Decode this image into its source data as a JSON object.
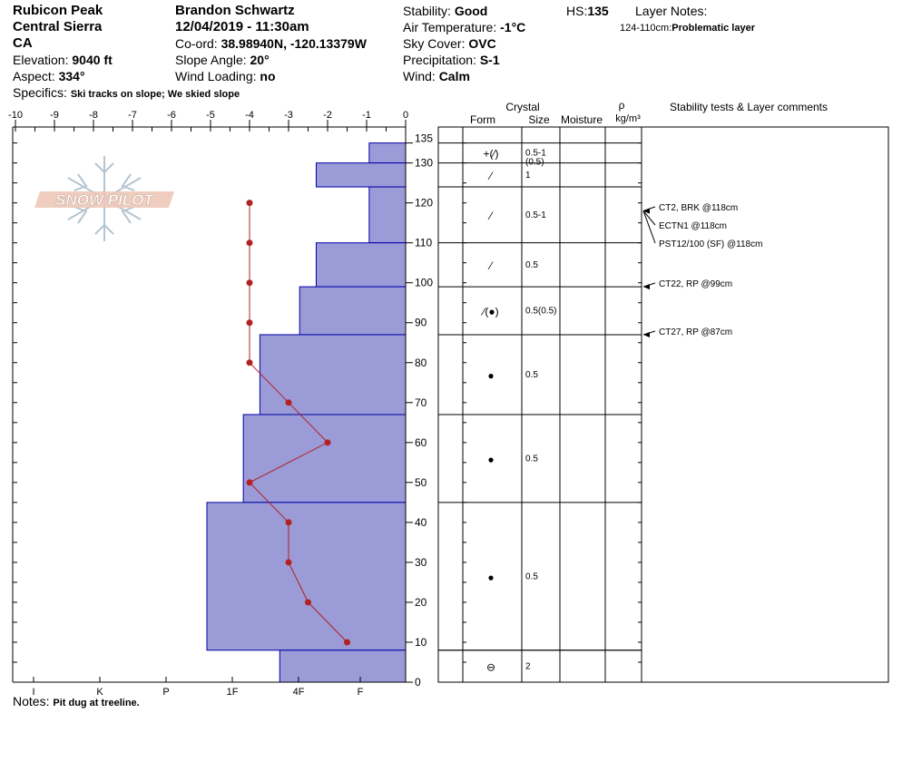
{
  "header": {
    "site": "Rubicon Peak",
    "range": "Central Sierra",
    "state": "CA",
    "elevation_label": "Elevation:",
    "elevation_value": "9040 ft",
    "aspect_label": "Aspect:",
    "aspect_value": "334°",
    "specifics_label": "Specifics:",
    "specifics_value": "Ski tracks on slope; We skied slope",
    "observer": "Brandon Schwartz",
    "datetime": "12/04/2019 - 11:30am",
    "coord_label": "Co-ord:",
    "coord_value": "38.98940N, -120.13379W",
    "slope_label": "Slope Angle:",
    "slope_value": "20°",
    "wind_loading_label": "Wind Loading:",
    "wind_loading_value": "no",
    "stability_label": "Stability:",
    "stability_value": "Good",
    "air_temp_label": "Air Temperature:",
    "air_temp_value": "-1°C",
    "sky_label": "Sky Cover:",
    "sky_value": "OVC",
    "precip_label": "Precipitation:",
    "precip_value": "S-1",
    "wind_label": "Wind:",
    "wind_value": "Calm",
    "hs_label": "HS:",
    "hs_value": "135",
    "layer_notes_label": "Layer Notes:",
    "layer_note_range": "124-110cm:",
    "layer_note_text": "Problematic layer",
    "notes_label": "Notes:",
    "notes_value": "Pit dug at treeline."
  },
  "logo": {
    "text": "SNOW PILOT"
  },
  "chart_data": {
    "type": "snow_profile",
    "temperature_axis": {
      "ticks": [
        -10,
        -9,
        -8,
        -7,
        -6,
        -5,
        -4,
        -3,
        -2,
        -1,
        0
      ],
      "range": [
        -10,
        0
      ]
    },
    "depth_axis": {
      "ticks": [
        0,
        10,
        20,
        30,
        40,
        50,
        60,
        70,
        80,
        90,
        100,
        110,
        120,
        130,
        135
      ],
      "range": [
        0,
        135
      ]
    },
    "hardness_axis": {
      "ticks": [
        "I",
        "K",
        "P",
        "1F",
        "4F",
        "F"
      ]
    },
    "temperature_profile": [
      {
        "depth": 120,
        "temp": -4.0
      },
      {
        "depth": 110,
        "temp": -4.0
      },
      {
        "depth": 100,
        "temp": -4.0
      },
      {
        "depth": 90,
        "temp": -4.0
      },
      {
        "depth": 80,
        "temp": -4.0
      },
      {
        "depth": 70,
        "temp": -3.0
      },
      {
        "depth": 60,
        "temp": -2.0
      },
      {
        "depth": 50,
        "temp": -4.0
      },
      {
        "depth": 40,
        "temp": -3.0
      },
      {
        "depth": 30,
        "temp": -3.0
      },
      {
        "depth": 20,
        "temp": -2.5
      },
      {
        "depth": 10,
        "temp": -1.5
      }
    ],
    "hardness_layers": [
      {
        "top": 135,
        "bottom": 130,
        "hardness": 1.1
      },
      {
        "top": 130,
        "bottom": 124,
        "hardness": 2.7
      },
      {
        "top": 124,
        "bottom": 110,
        "hardness": 1.1
      },
      {
        "top": 110,
        "bottom": 99,
        "hardness": 2.7
      },
      {
        "top": 99,
        "bottom": 87,
        "hardness": 3.2
      },
      {
        "top": 87,
        "bottom": 67,
        "hardness": 4.4
      },
      {
        "top": 67,
        "bottom": 45,
        "hardness": 4.9
      },
      {
        "top": 45,
        "bottom": 8,
        "hardness": 6.0
      },
      {
        "top": 8,
        "bottom": 0,
        "hardness": 3.8
      }
    ],
    "crystal_columns": {
      "crystal": "Crystal",
      "form": "Form",
      "size": "Size",
      "moisture": "Moisture",
      "rho": "ρ",
      "rho_unit": "kg/m³",
      "tests": "Stability tests & Layer comments"
    },
    "crystal_layers": [
      {
        "top": 135,
        "bottom": 130,
        "form": "+(⁄)",
        "size": "0.5-1",
        "size2": "(0.5)"
      },
      {
        "top": 130,
        "bottom": 124,
        "form": "⁄",
        "size": "1",
        "size2": ""
      },
      {
        "top": 124,
        "bottom": 110,
        "form": "⁄",
        "size": "0.5-1",
        "size2": ""
      },
      {
        "top": 110,
        "bottom": 99,
        "form": "⁄",
        "size": "0.5",
        "size2": ""
      },
      {
        "top": 99,
        "bottom": 87,
        "form": "⁄(●)",
        "size": "0.5(0.5)",
        "size2": ""
      },
      {
        "top": 87,
        "bottom": 67,
        "form": "●",
        "size": "0.5",
        "size2": ""
      },
      {
        "top": 67,
        "bottom": 45,
        "form": "●",
        "size": "0.5",
        "size2": ""
      },
      {
        "top": 45,
        "bottom": 8,
        "form": "●",
        "size": "0.5",
        "size2": ""
      },
      {
        "top": 8,
        "bottom": 0,
        "form": "⊖",
        "size": "2",
        "size2": ""
      }
    ],
    "stability_tests": [
      {
        "depth": 118,
        "text": "CT2, BRK @118cm"
      },
      {
        "depth": 118,
        "text": "ECTN1 @118cm"
      },
      {
        "depth": 118,
        "text": "PST12/100 (SF) @118cm"
      },
      {
        "depth": 99,
        "text": "CT22, RP @99cm"
      },
      {
        "depth": 87,
        "text": "CT27, RP @87cm"
      }
    ],
    "colors": {
      "hardness_fill": "#9b9bd7",
      "hardness_stroke": "#0000aa",
      "temp_line": "#b22222"
    }
  }
}
